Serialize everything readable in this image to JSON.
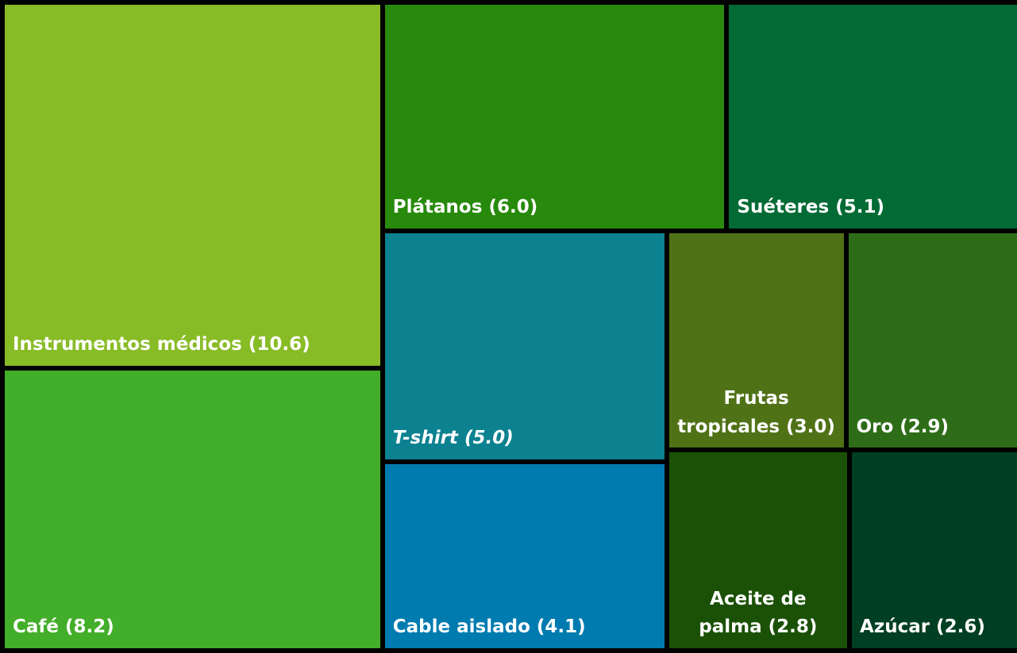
{
  "chart_data": {
    "type": "treemap",
    "categories": [
      "Instrumentos médicos",
      "Café",
      "Plátanos",
      "Suéteres",
      "T-shirt",
      "Cable aislado",
      "Frutas tropicales",
      "Oro",
      "Aceite de palma",
      "Azúcar"
    ],
    "values": [
      10.6,
      8.2,
      6.0,
      5.1,
      5.0,
      4.1,
      3.0,
      2.9,
      2.8,
      2.6
    ],
    "value_labels": [
      "(10.6)",
      "(8.2)",
      "(6.0)",
      "(5.1)",
      "(5.0)",
      "(4.1)",
      "(3.0)",
      "(2.9)",
      "(2.8)",
      "(2.6)"
    ],
    "colors": [
      "#88bc26",
      "#43ae29",
      "#288a0c",
      "#026b35",
      "#0c8190",
      "#007bb0",
      "#507217",
      "#2e6d18",
      "#1b5106",
      "#013f22"
    ],
    "label_styles": [
      "normal",
      "normal",
      "normal",
      "normal",
      "italic",
      "normal",
      "normal",
      "normal",
      "normal",
      "normal"
    ]
  }
}
